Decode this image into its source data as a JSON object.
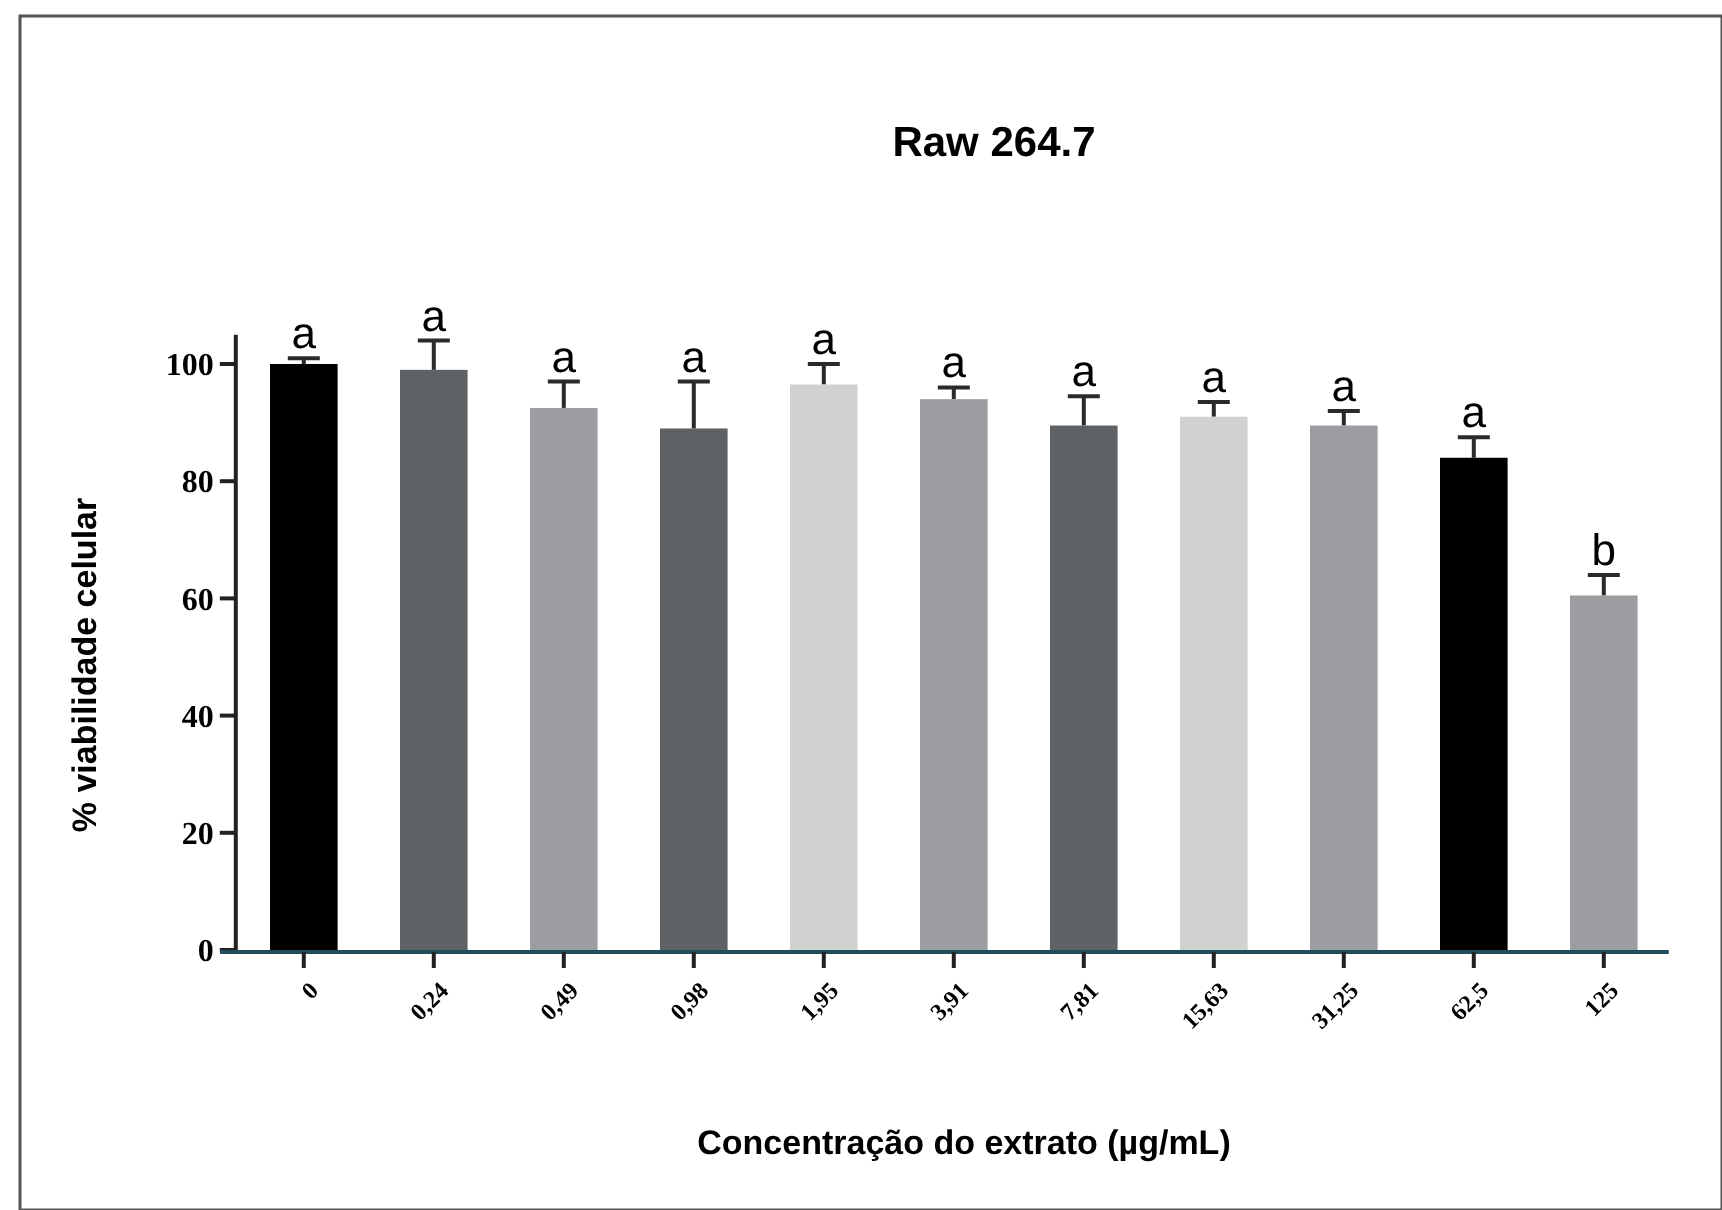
{
  "chart_data": {
    "type": "bar",
    "title": "Raw 264.7",
    "xlabel": "Concentração do extrato (µg/mL)",
    "ylabel": "% viabilidade celular",
    "categories": [
      "0",
      "0,24",
      "0,49",
      "0,98",
      "1,95",
      "3,91",
      "7,81",
      "15,63",
      "31,25",
      "62,5",
      "125"
    ],
    "values": [
      100,
      99,
      92.5,
      89,
      96.5,
      94,
      89.5,
      91,
      89.5,
      84,
      60.5
    ],
    "errors": [
      1,
      5,
      4.5,
      8,
      3.5,
      2,
      5,
      2.5,
      2.5,
      3.5,
      3.5
    ],
    "colors": [
      "#000000",
      "#5f6265",
      "#9c9da1",
      "#5f6265",
      "#d0d1d1",
      "#9c9da1",
      "#5f6265",
      "#d0d1d1",
      "#9c9da1",
      "#000000",
      "#9c9da1"
    ],
    "ylim": [
      0,
      105
    ],
    "yticks": [
      0,
      20,
      40,
      60,
      80,
      100
    ],
    "annotations": [
      {
        "text": "a",
        "x": "0",
        "y": 101
      },
      {
        "text": "a",
        "x": "0,24",
        "y": 104
      },
      {
        "text": "a",
        "x": "0,49",
        "y": 97
      },
      {
        "text": "a",
        "x": "0,98",
        "y": 97
      },
      {
        "text": "a",
        "x": "1,95",
        "y": 100
      },
      {
        "text": "a",
        "x": "3,91",
        "y": 96
      },
      {
        "text": "a",
        "x": "7,81",
        "y": 94.5
      },
      {
        "text": "a",
        "x": "15,63",
        "y": 93.5
      },
      {
        "text": "a",
        "x": "31,25",
        "y": 92
      },
      {
        "text": "a",
        "x": "62,5",
        "y": 87.5
      },
      {
        "text": "b",
        "x": "125",
        "y": 64
      }
    ]
  }
}
